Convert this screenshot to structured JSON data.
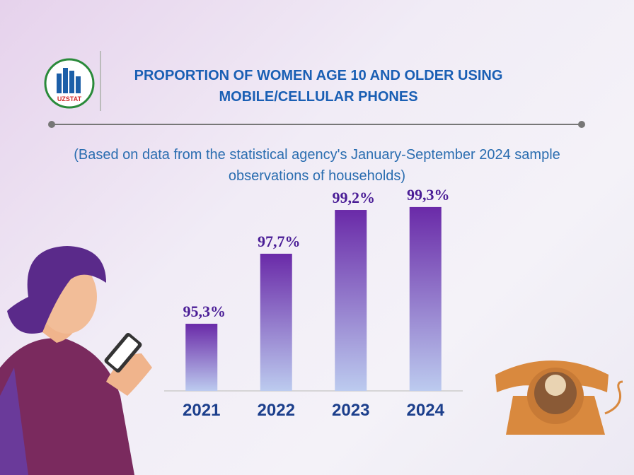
{
  "logo_text": "UZSTAT",
  "chart_data": {
    "type": "bar",
    "title": "PROPORTION OF WOMEN AGE 10 AND OLDER USING MOBILE/CELLULAR PHONES",
    "subtitle": "(Based on data from the statistical agency's January-September 2024 sample observations of households)",
    "categories": [
      "2021",
      "2022",
      "2023",
      "2024"
    ],
    "values": [
      95.3,
      97.7,
      99.2,
      99.3
    ],
    "value_labels": [
      "95,3%",
      "97,7%",
      "99,2%",
      "99,3%"
    ],
    "color": "#6a2aa8",
    "ylim": [
      93,
      100
    ]
  }
}
